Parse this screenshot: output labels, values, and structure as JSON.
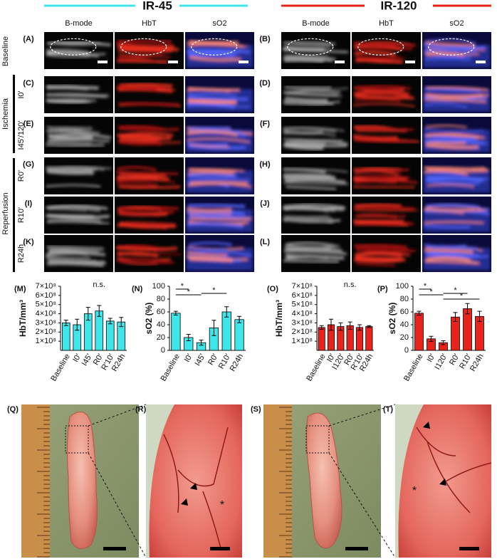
{
  "figure": {
    "groups": [
      "IR-45",
      "IR-120"
    ],
    "columns": [
      "B-mode",
      "HbT",
      "sO2"
    ],
    "panel_letters": [
      "(A)",
      "(B)",
      "(C)",
      "(D)",
      "(E)",
      "(F)",
      "(G)",
      "(H)",
      "(I)",
      "(J)",
      "(K)",
      "(L)"
    ],
    "row_groups": [
      "Baseline",
      "Ischemia",
      "Reperfusion"
    ],
    "row_labels": [
      "I0'",
      "I45'/120'",
      "R0'",
      "R10'",
      "R24h"
    ],
    "photo_letters": [
      "(Q)",
      "(R)",
      "(S)",
      "(T)"
    ],
    "photo_asterisk": "*"
  },
  "chart_data": [
    {
      "type": "bar",
      "letter": "(M)",
      "ylabel": "HbT/mm³",
      "categories": [
        "Baseline",
        "I0'",
        "I45'",
        "R0'",
        "R'10'",
        "R24h"
      ],
      "values": [
        300000000,
        280000000,
        400000000,
        430000000,
        320000000,
        310000000
      ],
      "errors": [
        30000000,
        60000000,
        70000000,
        60000000,
        30000000,
        50000000
      ],
      "color": "#3ee6ea",
      "ylim": [
        0,
        700000000
      ],
      "yticks": [
        {
          "value": 100000000,
          "label": "1×10⁸"
        },
        {
          "value": 200000000,
          "label": "2×10⁸"
        },
        {
          "value": 300000000,
          "label": "3×10⁸"
        },
        {
          "value": 400000000,
          "label": "4×10⁸"
        },
        {
          "value": 500000000,
          "label": "5×10⁸"
        },
        {
          "value": 600000000,
          "label": "6×10⁸"
        },
        {
          "value": 700000000,
          "label": "7×10⁸"
        }
      ],
      "annotations": [
        "n.s."
      ]
    },
    {
      "type": "bar",
      "letter": "(N)",
      "ylabel": "sO2 (%)",
      "categories": [
        "Baseline",
        "I0'",
        "I45'",
        "R0'",
        "R10'",
        "R24h"
      ],
      "values": [
        58,
        20,
        12,
        35,
        60,
        48
      ],
      "errors": [
        3,
        5,
        4,
        12,
        8,
        5
      ],
      "color": "#3ee6ea",
      "ylim": [
        0,
        100
      ],
      "yticks": [
        0,
        20,
        40,
        60,
        80,
        100
      ],
      "annotations": [
        "*",
        "*",
        "*"
      ]
    },
    {
      "type": "bar",
      "letter": "(O)",
      "ylabel": "HbT/mm³",
      "categories": [
        "Baseline",
        "I0'",
        "I120'",
        "R0'",
        "R'10'",
        "R24h"
      ],
      "values": [
        250000000,
        280000000,
        260000000,
        270000000,
        250000000,
        260000000
      ],
      "errors": [
        20000000,
        60000000,
        40000000,
        40000000,
        30000000,
        10000000
      ],
      "color": "#e8231c",
      "ylim": [
        0,
        700000000
      ],
      "yticks": [
        {
          "value": 100000000,
          "label": "1×10⁸"
        },
        {
          "value": 200000000,
          "label": "2×10⁸"
        },
        {
          "value": 300000000,
          "label": "3×10⁸"
        },
        {
          "value": 400000000,
          "label": "4×10⁸"
        },
        {
          "value": 500000000,
          "label": "5×10⁸"
        },
        {
          "value": 600000000,
          "label": "6×10⁸"
        },
        {
          "value": 700000000,
          "label": "7×10⁸"
        }
      ],
      "annotations": [
        "n.s."
      ]
    },
    {
      "type": "bar",
      "letter": "(P)",
      "ylabel": "sO2 (%)",
      "categories": [
        "Baseline",
        "I0'",
        "I120'",
        "R0'",
        "R10'",
        "R24h"
      ],
      "values": [
        58,
        18,
        12,
        52,
        65,
        53
      ],
      "errors": [
        3,
        4,
        3,
        7,
        8,
        8
      ],
      "color": "#e8231c",
      "ylim": [
        0,
        100
      ],
      "yticks": [
        0,
        20,
        40,
        60,
        80,
        100
      ],
      "annotations": [
        "*",
        "*",
        "*",
        "*"
      ]
    }
  ]
}
